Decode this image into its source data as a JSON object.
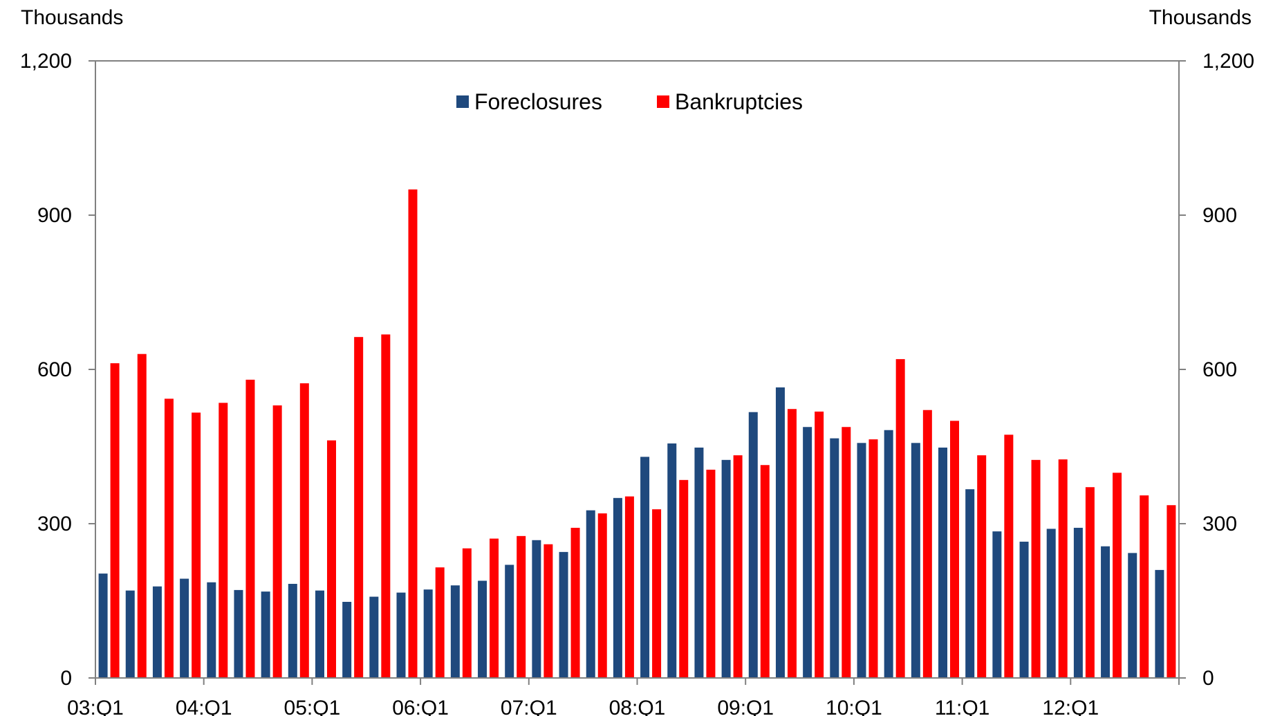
{
  "chart_data": {
    "type": "bar",
    "left_axis_label": "Thousands",
    "right_axis_label": "Thousands",
    "ylim": [
      0,
      1200
    ],
    "y_ticks": [
      0,
      300,
      600,
      900,
      1200
    ],
    "y_tick_labels": [
      "0",
      "300",
      "600",
      "900",
      "1,200"
    ],
    "x_tick_labels": [
      "03:Q1",
      "04:Q1",
      "05:Q1",
      "06:Q1",
      "07:Q1",
      "08:Q1",
      "09:Q1",
      "10:Q1",
      "11:Q1",
      "12:Q1"
    ],
    "categories": [
      "03:Q1",
      "03:Q2",
      "03:Q3",
      "03:Q4",
      "04:Q1",
      "04:Q2",
      "04:Q3",
      "04:Q4",
      "05:Q1",
      "05:Q2",
      "05:Q3",
      "05:Q4",
      "06:Q1",
      "06:Q2",
      "06:Q3",
      "06:Q4",
      "07:Q1",
      "07:Q2",
      "07:Q3",
      "07:Q4",
      "08:Q1",
      "08:Q2",
      "08:Q3",
      "08:Q4",
      "09:Q1",
      "09:Q2",
      "09:Q3",
      "09:Q4",
      "10:Q1",
      "10:Q2",
      "10:Q3",
      "10:Q4",
      "11:Q1",
      "11:Q2",
      "11:Q3",
      "11:Q4",
      "12:Q1",
      "12:Q2",
      "12:Q3",
      "12:Q4"
    ],
    "legend_position": "top-center",
    "grid": false,
    "series": [
      {
        "name": "Foreclosures",
        "color": "#1F497D",
        "values": [
          203,
          170,
          178,
          193,
          186,
          171,
          168,
          183,
          170,
          148,
          158,
          166,
          172,
          180,
          189,
          220,
          268,
          245,
          326,
          350,
          430,
          456,
          448,
          424,
          517,
          565,
          488,
          466,
          457,
          482,
          457,
          448,
          367,
          285,
          265,
          290,
          292,
          256,
          243,
          210
        ]
      },
      {
        "name": "Bankruptcies",
        "color": "#FF0000",
        "values": [
          612,
          630,
          543,
          516,
          535,
          580,
          530,
          573,
          462,
          663,
          668,
          950,
          215,
          252,
          271,
          276,
          260,
          292,
          320,
          353,
          328,
          385,
          405,
          433,
          414,
          523,
          518,
          488,
          464,
          620,
          521,
          500,
          433,
          473,
          424,
          425,
          371,
          399,
          355,
          336
        ]
      }
    ]
  }
}
